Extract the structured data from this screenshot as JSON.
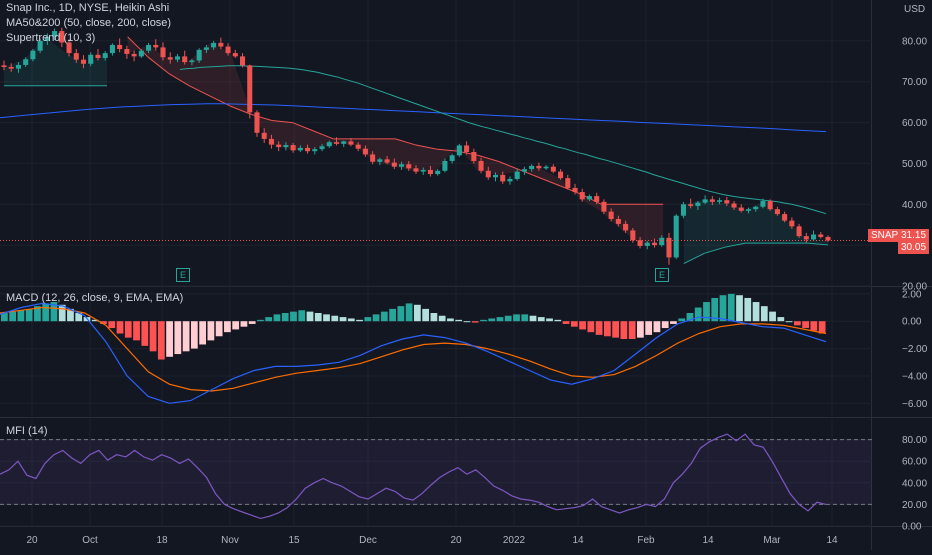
{
  "header": {
    "title": "Snap Inc., 1D, NYSE, Heikin Ashi",
    "indicator_ma": "MA50&200 (50, close, 200, close)",
    "indicator_st": "Supertrend (10, 3)",
    "currency": "USD"
  },
  "macd_panel": {
    "title": "MACD (12, 26, close, 9, EMA, EMA)"
  },
  "mfi_panel": {
    "title": "MFI (14)"
  },
  "price_tags": {
    "symbol": "SNAP",
    "last": "31.15",
    "stop": "30.05"
  },
  "earnings_marker": "E",
  "colors": {
    "bg": "#131722",
    "up": "#26a69a",
    "down": "#ef5350",
    "ma50": "#26a69a",
    "ma200": "#2962ff",
    "st_up": "#26a69a",
    "st_down": "#ef5350",
    "macd": "#2962ff",
    "signal": "#ff6d00",
    "mfi": "#7e57c2"
  },
  "chart_data": [
    {
      "type": "line",
      "title": "Snap Inc., 1D, NYSE, Heikin Ashi",
      "candle_style": "heikin-ashi",
      "ylim": [
        20,
        90
      ],
      "y_ticks": [
        "20.00",
        "30.00",
        "40.00",
        "50.00",
        "60.00",
        "70.00",
        "80.00"
      ],
      "x_ticks": [
        "20",
        "Oct",
        "18",
        "Nov",
        "15",
        "Dec",
        "20",
        "2022",
        "14",
        "Feb",
        "14",
        "Mar",
        "14"
      ],
      "candles_ohlc": [
        [
          74.0,
          75.2,
          72.8,
          73.6
        ],
        [
          73.6,
          74.5,
          72.4,
          73.2
        ],
        [
          73.2,
          74.8,
          72.2,
          74.1
        ],
        [
          74.1,
          76.0,
          73.6,
          75.5
        ],
        [
          75.5,
          78.0,
          75.0,
          77.6
        ],
        [
          77.6,
          80.5,
          77.0,
          80.0
        ],
        [
          80.0,
          81.8,
          79.0,
          81.0
        ],
        [
          81.0,
          83.0,
          80.2,
          82.4
        ],
        [
          82.4,
          83.2,
          78.5,
          79.6
        ],
        [
          79.6,
          80.4,
          76.2,
          77.0
        ],
        [
          77.0,
          78.0,
          74.6,
          75.4
        ],
        [
          75.4,
          76.5,
          73.3,
          74.4
        ],
        [
          74.4,
          77.2,
          73.8,
          76.6
        ],
        [
          76.6,
          78.0,
          75.2,
          75.8
        ],
        [
          75.8,
          77.5,
          75.2,
          77.0
        ],
        [
          77.0,
          79.4,
          76.4,
          79.0
        ],
        [
          79.0,
          80.6,
          77.2,
          78.0
        ],
        [
          78.0,
          78.8,
          75.6,
          76.8
        ],
        [
          76.8,
          77.6,
          75.0,
          76.2
        ],
        [
          76.2,
          78.0,
          75.8,
          77.6
        ],
        [
          77.6,
          79.5,
          77.0,
          79.0
        ],
        [
          79.0,
          80.4,
          77.6,
          78.4
        ],
        [
          78.4,
          79.6,
          75.2,
          76.0
        ],
        [
          76.0,
          77.2,
          74.4,
          75.4
        ],
        [
          75.4,
          76.8,
          74.8,
          76.2
        ],
        [
          76.2,
          77.6,
          74.2,
          74.8
        ],
        [
          74.8,
          75.6,
          74.0,
          75.2
        ],
        [
          75.2,
          78.2,
          74.6,
          77.8
        ],
        [
          77.8,
          79.0,
          77.0,
          78.4
        ],
        [
          78.4,
          80.0,
          77.8,
          79.5
        ],
        [
          79.5,
          80.8,
          78.0,
          78.6
        ],
        [
          78.6,
          79.4,
          76.4,
          77.0
        ],
        [
          77.0,
          77.8,
          75.8,
          76.2
        ],
        [
          76.2,
          77.0,
          73.5,
          74.0
        ],
        [
          74.0,
          74.2,
          61.0,
          62.5
        ],
        [
          62.5,
          63.0,
          56.5,
          57.5
        ],
        [
          57.5,
          58.6,
          55.0,
          56.0
        ],
        [
          56.0,
          57.0,
          53.6,
          54.6
        ],
        [
          54.6,
          55.4,
          53.0,
          54.0
        ],
        [
          54.0,
          55.2,
          53.2,
          54.5
        ],
        [
          54.5,
          55.0,
          52.6,
          53.2
        ],
        [
          53.2,
          54.4,
          52.8,
          53.8
        ],
        [
          53.8,
          54.6,
          52.4,
          53.0
        ],
        [
          53.0,
          54.0,
          52.2,
          53.5
        ],
        [
          53.5,
          54.8,
          53.0,
          54.2
        ],
        [
          54.2,
          55.6,
          53.8,
          55.2
        ],
        [
          55.2,
          56.4,
          54.4,
          54.8
        ],
        [
          54.8,
          55.6,
          54.0,
          55.4
        ],
        [
          55.4,
          56.2,
          54.2,
          54.6
        ],
        [
          54.6,
          55.2,
          53.0,
          53.6
        ],
        [
          53.6,
          54.4,
          51.6,
          52.2
        ],
        [
          52.2,
          53.0,
          49.8,
          50.4
        ],
        [
          50.4,
          51.4,
          49.6,
          51.0
        ],
        [
          51.0,
          51.8,
          49.8,
          50.2
        ],
        [
          50.2,
          51.2,
          48.6,
          49.2
        ],
        [
          49.2,
          50.4,
          48.4,
          49.8
        ],
        [
          49.8,
          50.6,
          48.2,
          48.8
        ],
        [
          48.8,
          49.6,
          47.4,
          48.0
        ],
        [
          48.0,
          49.0,
          47.2,
          48.4
        ],
        [
          48.4,
          49.4,
          46.8,
          47.4
        ],
        [
          47.4,
          48.6,
          47.0,
          48.2
        ],
        [
          48.2,
          51.2,
          47.8,
          50.6
        ],
        [
          50.6,
          52.4,
          50.0,
          52.0
        ],
        [
          52.0,
          54.8,
          51.6,
          54.4
        ],
        [
          54.4,
          55.4,
          52.2,
          52.8
        ],
        [
          52.8,
          53.6,
          50.0,
          50.6
        ],
        [
          50.6,
          51.4,
          47.6,
          48.2
        ],
        [
          48.2,
          49.2,
          46.0,
          46.6
        ],
        [
          46.6,
          47.8,
          45.6,
          47.2
        ],
        [
          47.2,
          48.0,
          45.0,
          45.6
        ],
        [
          45.6,
          46.8,
          44.8,
          46.2
        ],
        [
          46.2,
          48.6,
          45.8,
          48.0
        ],
        [
          48.0,
          49.2,
          47.2,
          48.6
        ],
        [
          48.6,
          49.8,
          48.0,
          49.4
        ],
        [
          49.4,
          50.2,
          48.2,
          48.8
        ],
        [
          48.8,
          49.6,
          48.4,
          49.2
        ],
        [
          49.2,
          49.8,
          47.6,
          48.0
        ],
        [
          48.0,
          48.6,
          46.0,
          46.4
        ],
        [
          46.4,
          47.2,
          43.6,
          44.0
        ],
        [
          44.0,
          45.0,
          42.4,
          43.0
        ],
        [
          43.0,
          43.8,
          40.6,
          41.2
        ],
        [
          41.2,
          42.4,
          40.8,
          42.0
        ],
        [
          42.0,
          42.8,
          40.0,
          40.6
        ],
        [
          40.6,
          41.2,
          37.6,
          38.2
        ],
        [
          38.2,
          39.0,
          35.8,
          36.4
        ],
        [
          36.4,
          37.2,
          34.6,
          35.2
        ],
        [
          35.2,
          36.0,
          33.0,
          33.6
        ],
        [
          33.6,
          34.2,
          30.6,
          31.2
        ],
        [
          31.2,
          32.0,
          29.2,
          29.8
        ],
        [
          29.8,
          31.0,
          29.0,
          30.6
        ],
        [
          30.6,
          31.6,
          29.4,
          30.0
        ],
        [
          30.0,
          32.4,
          29.6,
          31.8
        ],
        [
          31.8,
          33.0,
          25.2,
          27.0
        ],
        [
          27.0,
          37.6,
          26.6,
          37.2
        ],
        [
          37.2,
          40.6,
          36.6,
          40.0
        ],
        [
          40.0,
          41.4,
          39.0,
          39.6
        ],
        [
          39.6,
          40.8,
          38.6,
          40.4
        ],
        [
          40.4,
          42.2,
          40.0,
          41.2
        ],
        [
          41.2,
          42.0,
          39.8,
          40.6
        ],
        [
          40.6,
          41.6,
          40.0,
          41.0
        ],
        [
          41.0,
          41.8,
          39.6,
          40.2
        ],
        [
          40.2,
          40.8,
          38.6,
          39.2
        ],
        [
          39.2,
          40.0,
          38.0,
          38.4
        ],
        [
          38.4,
          39.2,
          37.8,
          38.8
        ],
        [
          38.8,
          39.6,
          38.2,
          39.4
        ],
        [
          39.4,
          41.4,
          39.0,
          40.8
        ],
        [
          40.8,
          41.2,
          38.4,
          38.8
        ],
        [
          38.8,
          39.4,
          37.2,
          37.6
        ],
        [
          37.6,
          38.2,
          35.6,
          36.0
        ],
        [
          36.0,
          36.8,
          34.0,
          34.6
        ],
        [
          34.6,
          35.2,
          31.8,
          32.2
        ],
        [
          32.2,
          33.0,
          30.6,
          31.4
        ],
        [
          31.4,
          33.6,
          31.0,
          32.6
        ],
        [
          32.6,
          33.2,
          31.6,
          32.0
        ],
        [
          32.0,
          32.4,
          30.8,
          31.15
        ]
      ],
      "series": [
        {
          "name": "MA50",
          "values": [
            73.0,
            73.2,
            73.3,
            73.5,
            73.6,
            73.7,
            73.8,
            73.9,
            73.9,
            73.9,
            73.8,
            73.8,
            73.7,
            73.6,
            73.5,
            73.4,
            73.3,
            73.1,
            72.9,
            72.6,
            72.3,
            71.9,
            71.5,
            71.1,
            70.6,
            70.1,
            69.6,
            69.0,
            68.4,
            67.8,
            67.2,
            66.6,
            66.0,
            65.4,
            64.8,
            64.2,
            63.6,
            63.0,
            62.4,
            61.8,
            61.2,
            60.6,
            60.0,
            59.5,
            59.0,
            58.6,
            58.1,
            57.7,
            57.2,
            56.8,
            56.3,
            55.9,
            55.4,
            55.0,
            54.5,
            54.0,
            53.6,
            53.1,
            52.6,
            52.2,
            51.7,
            51.2,
            50.8,
            50.3,
            49.8,
            49.3,
            48.8,
            48.3,
            47.8,
            47.2,
            46.7,
            46.2,
            45.7,
            45.2,
            44.7,
            44.2,
            43.7,
            43.2,
            42.8,
            42.4,
            42.1,
            41.8,
            41.6,
            41.4,
            41.2,
            41.0,
            40.8,
            40.6,
            40.3,
            40.0,
            39.6,
            39.2,
            38.7,
            38.2,
            37.7
          ]
        },
        {
          "name": "MA200",
          "values": [
            61.2,
            61.6,
            62.0,
            62.4,
            62.8,
            63.2,
            63.5,
            63.8,
            64.0,
            64.2,
            64.4,
            64.5,
            64.6,
            64.6,
            64.5,
            64.4,
            64.3,
            64.1,
            63.9,
            63.7,
            63.5,
            63.3,
            63.1,
            62.9,
            62.7,
            62.5,
            62.3,
            62.1,
            61.9,
            61.7,
            61.5,
            61.3,
            61.1,
            60.9,
            60.7,
            60.5,
            60.3,
            60.1,
            59.9,
            59.7,
            59.5,
            59.3,
            59.1,
            58.9,
            58.7,
            58.5,
            58.2,
            58.0,
            57.8
          ]
        },
        {
          "name": "Supertrend",
          "values": [
            69.0,
            69.0,
            69.0,
            69.0,
            69.0,
            69.0,
            81.0,
            76.0,
            72.0,
            69.0,
            66.5,
            64.0,
            62.0,
            60.5,
            60.0,
            58.0,
            56.0,
            56.0,
            56.0,
            56.0,
            54.5,
            53.5,
            53.0,
            52.0,
            50.5,
            48.5,
            46.5,
            44.5,
            42.5,
            40.0,
            40.0,
            40.0,
            40.0,
            25.5,
            28.0,
            29.5,
            30.5,
            30.5,
            30.5,
            30.5,
            30.05
          ]
        }
      ]
    },
    {
      "type": "bar",
      "title": "MACD (12, 26, close, 9, EMA, EMA)",
      "ylim": [
        -7,
        2.5
      ],
      "y_ticks": [
        "2.00",
        "0.00",
        "−2.00",
        "−4.00",
        "−6.00"
      ],
      "histogram": [
        0.6,
        0.7,
        0.8,
        0.9,
        1.1,
        1.3,
        1.4,
        1.2,
        0.9,
        0.6,
        0.3,
        0.1,
        -0.2,
        -0.5,
        -0.9,
        -1.2,
        -1.4,
        -1.8,
        -2.2,
        -2.8,
        -2.6,
        -2.4,
        -2.2,
        -2.0,
        -1.7,
        -1.4,
        -1.1,
        -0.8,
        -0.6,
        -0.4,
        -0.2,
        0.1,
        0.3,
        0.5,
        0.6,
        0.7,
        0.8,
        0.7,
        0.6,
        0.5,
        0.4,
        0.3,
        0.2,
        0.1,
        0.3,
        0.5,
        0.7,
        0.9,
        1.1,
        1.3,
        1.2,
        0.9,
        0.6,
        0.4,
        0.2,
        0.1,
        0.0,
        -0.1,
        0.1,
        0.2,
        0.3,
        0.4,
        0.5,
        0.5,
        0.4,
        0.3,
        0.2,
        0.1,
        -0.2,
        -0.4,
        -0.6,
        -0.8,
        -1.0,
        -1.1,
        -1.2,
        -1.3,
        -1.3,
        -1.2,
        -1.0,
        -0.8,
        -0.5,
        -0.2,
        0.2,
        0.6,
        1.0,
        1.4,
        1.7,
        1.9,
        2.0,
        1.9,
        1.7,
        1.4,
        1.1,
        0.7,
        0.3,
        0.0,
        -0.3,
        -0.5,
        -0.7,
        -0.9
      ],
      "series": [
        {
          "name": "MACD",
          "values": [
            0.5,
            1.0,
            1.3,
            1.1,
            0.4,
            -1.5,
            -4.0,
            -5.5,
            -6.0,
            -5.8,
            -5.0,
            -4.2,
            -3.6,
            -3.3,
            -3.3,
            -3.2,
            -3.0,
            -2.5,
            -1.8,
            -1.3,
            -1.0,
            -1.2,
            -1.6,
            -2.2,
            -2.9,
            -3.6,
            -4.3,
            -4.6,
            -4.2,
            -3.6,
            -2.4,
            -1.2,
            -0.2,
            0.3,
            0.2,
            -0.1,
            -0.4,
            -0.5,
            -1.0,
            -1.5
          ]
        },
        {
          "name": "Signal",
          "values": [
            0.6,
            0.8,
            1.0,
            0.9,
            0.6,
            -0.3,
            -2.0,
            -3.7,
            -4.6,
            -5.0,
            -5.1,
            -4.9,
            -4.5,
            -4.1,
            -3.8,
            -3.6,
            -3.4,
            -3.1,
            -2.6,
            -2.1,
            -1.7,
            -1.6,
            -1.7,
            -2.0,
            -2.4,
            -2.9,
            -3.5,
            -4.0,
            -4.1,
            -3.9,
            -3.3,
            -2.5,
            -1.6,
            -0.9,
            -0.4,
            -0.2,
            -0.2,
            -0.3,
            -0.6,
            -0.9
          ]
        }
      ]
    },
    {
      "type": "line",
      "title": "MFI (14)",
      "ylim": [
        0,
        100
      ],
      "y_ticks": [
        "0.00",
        "20.00",
        "40.00",
        "60.00",
        "80.00"
      ],
      "bands": [
        20,
        80
      ],
      "series": [
        {
          "name": "MFI",
          "values": [
            48,
            52,
            60,
            47,
            44,
            58,
            66,
            70,
            63,
            58,
            66,
            70,
            61,
            66,
            64,
            70,
            64,
            61,
            66,
            63,
            58,
            62,
            54,
            45,
            30,
            20,
            16,
            13,
            10,
            7,
            9,
            12,
            17,
            25,
            35,
            40,
            44,
            40,
            37,
            32,
            27,
            25,
            30,
            35,
            32,
            26,
            24,
            30,
            38,
            45,
            50,
            54,
            48,
            52,
            45,
            37,
            33,
            28,
            25,
            24,
            22,
            18,
            15,
            16,
            17,
            19,
            25,
            18,
            15,
            12,
            15,
            17,
            20,
            18,
            25,
            40,
            48,
            58,
            72,
            78,
            82,
            85,
            79,
            85,
            75,
            73,
            60,
            45,
            30,
            20,
            14,
            22,
            20
          ]
        }
      ]
    }
  ]
}
